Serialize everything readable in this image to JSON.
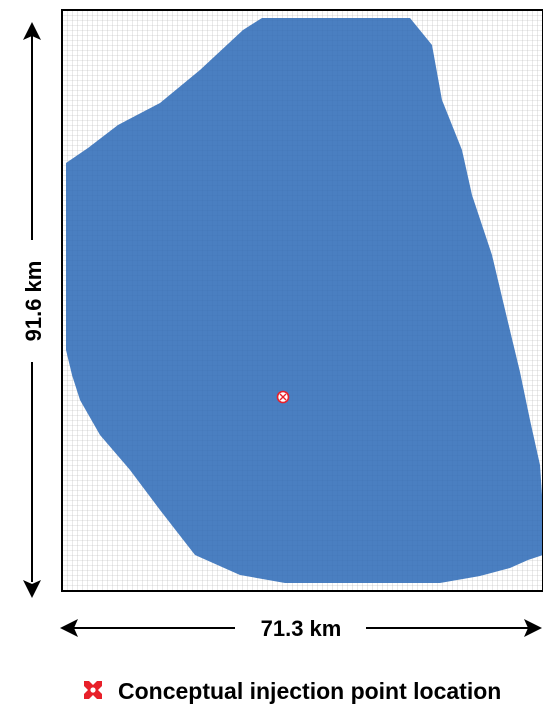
{
  "diagram": {
    "dimensions": {
      "height_label": "91.6 km",
      "width_label": "71.3 km"
    },
    "legend": {
      "icon": "injection-point-icon",
      "label": "Conceptual injection point location",
      "icon_color": "#e8202a"
    },
    "colors": {
      "plume": "#4a7fc1",
      "grid_lines": "#b5b5b5",
      "frame": "#000000"
    },
    "icons": [
      "arrow-up-icon",
      "arrow-down-icon",
      "arrow-left-icon",
      "arrow-right-icon",
      "injection-point-icon"
    ]
  }
}
